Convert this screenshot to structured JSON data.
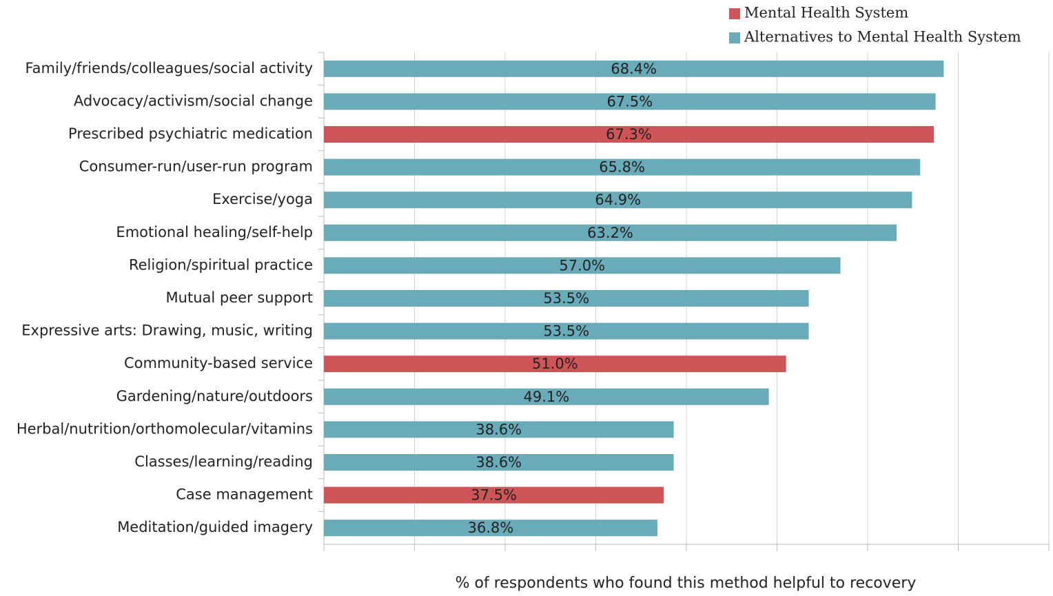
{
  "chart_data": {
    "type": "bar",
    "orientation": "horizontal",
    "categories": [
      "Family/friends/colleagues/social activity",
      "Advocacy/activism/social change",
      "Prescribed psychiatric medication",
      "Consumer-run/user-run program",
      "Exercise/yoga",
      "Emotional healing/self-help",
      "Religion/spiritual practice",
      "Mutual peer support",
      "Expressive arts: Drawing, music, writing",
      "Community-based service",
      "Gardening/nature/outdoors",
      "Herbal/nutrition/orthomolecular/vitamins",
      "Classes/learning/reading",
      "Case management",
      "Meditation/guided imagery"
    ],
    "series": [
      {
        "name": "Mental Health System",
        "color": "#cd5557",
        "values": [
          null,
          null,
          67.3,
          null,
          null,
          null,
          null,
          null,
          null,
          51.0,
          null,
          null,
          null,
          37.5,
          null
        ],
        "value_labels": [
          null,
          null,
          "67.3%",
          null,
          null,
          null,
          null,
          null,
          null,
          "51.0%",
          null,
          null,
          null,
          "37.5%",
          null
        ]
      },
      {
        "name": "Alternatives to Mental Health System",
        "color": "#6aabba",
        "values": [
          68.4,
          67.5,
          null,
          65.8,
          64.9,
          63.2,
          57.0,
          53.5,
          53.5,
          null,
          49.1,
          38.6,
          38.6,
          null,
          36.8
        ],
        "value_labels": [
          "68.4%",
          "67.5%",
          null,
          "65.8%",
          "64.9%",
          "63.2%",
          "57.0%",
          "53.5%",
          "53.5%",
          null,
          "49.1%",
          "38.6%",
          "38.6%",
          null,
          "36.8%"
        ]
      }
    ],
    "xlabel": "% of respondents who found this method helpful to recovery",
    "xlim": [
      0,
      80
    ],
    "xticks": [
      0,
      10,
      20,
      30,
      40,
      50,
      60,
      70,
      80
    ],
    "grid": true,
    "legend": "top-right"
  }
}
